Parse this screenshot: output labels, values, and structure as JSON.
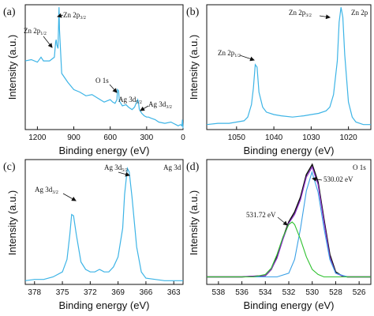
{
  "chart_data": [
    {
      "panel": "(a)",
      "type": "line",
      "xlabel": "Binding energy (eV)",
      "ylabel": "Intensity (a.u.)",
      "xlim": [
        1300,
        0
      ],
      "x_reversed": true,
      "x_ticks": [
        1200,
        900,
        600,
        300,
        0
      ],
      "y_ticks_shown": false,
      "series": [
        {
          "color": "#3db4e6",
          "x": [
            1300,
            1250,
            1200,
            1170,
            1150,
            1100,
            1060,
            1050,
            1045,
            1040,
            1030,
            1022,
            1018,
            1000,
            950,
            900,
            850,
            800,
            750,
            700,
            650,
            600,
            580,
            560,
            545,
            540,
            531,
            525,
            500,
            470,
            450,
            420,
            400,
            374,
            368,
            360,
            340,
            320,
            300,
            285,
            260,
            230,
            200,
            150,
            100,
            80,
            60,
            40,
            20,
            10,
            5,
            0
          ],
          "y": [
            0.55,
            0.56,
            0.54,
            0.58,
            0.55,
            0.55,
            0.58,
            0.7,
            0.72,
            0.68,
            0.65,
            0.98,
            0.8,
            0.45,
            0.38,
            0.32,
            0.3,
            0.27,
            0.28,
            0.25,
            0.22,
            0.24,
            0.22,
            0.21,
            0.24,
            0.32,
            0.31,
            0.23,
            0.19,
            0.2,
            0.18,
            0.16,
            0.18,
            0.24,
            0.22,
            0.16,
            0.13,
            0.11,
            0.1,
            0.1,
            0.09,
            0.08,
            0.06,
            0.05,
            0.06,
            0.05,
            0.04,
            0.03,
            0.04,
            0.03,
            0.08,
            0.01
          ]
        }
      ],
      "annotations": [
        {
          "main": "Zn 2p",
          "sub": "1/2",
          "at": 1045
        },
        {
          "main": "Zn 2p",
          "sub": "3/2",
          "at": 1022
        },
        {
          "main": "O 1s",
          "sub": "",
          "at": 531
        },
        {
          "main": "Ag 3d",
          "sub": "5/2",
          "at": 368
        },
        {
          "main": "Ag 3d",
          "sub": "3/2",
          "at": 374
        }
      ]
    },
    {
      "panel": "(b)",
      "title": "Zn 2p",
      "type": "line",
      "xlabel": "Binding energy (eV)",
      "ylabel": "Intensity (a.u.)",
      "xlim": [
        1058,
        1014
      ],
      "x_reversed": true,
      "x_ticks": [
        1050,
        1040,
        1030,
        1020
      ],
      "y_ticks_shown": false,
      "series": [
        {
          "color": "#3db4e6",
          "x": [
            1058,
            1055,
            1052,
            1050,
            1048,
            1047,
            1046,
            1045.5,
            1045,
            1044.5,
            1044,
            1043,
            1042,
            1040,
            1038,
            1035,
            1032,
            1030,
            1028,
            1026,
            1025,
            1024,
            1023,
            1022.5,
            1022,
            1021.5,
            1021,
            1020,
            1019,
            1018,
            1016,
            1014
          ],
          "y": [
            0.04,
            0.05,
            0.05,
            0.06,
            0.07,
            0.1,
            0.2,
            0.33,
            0.52,
            0.5,
            0.3,
            0.18,
            0.14,
            0.12,
            0.11,
            0.1,
            0.11,
            0.12,
            0.13,
            0.15,
            0.18,
            0.28,
            0.55,
            0.86,
            0.98,
            0.9,
            0.6,
            0.22,
            0.1,
            0.06,
            0.04,
            0.04
          ]
        }
      ],
      "annotations": [
        {
          "main": "Zn 2p",
          "sub": "1/2",
          "at": 1045
        },
        {
          "main": "Zn 2p",
          "sub": "3/2",
          "at": 1022
        }
      ]
    },
    {
      "panel": "(c)",
      "title": "Ag 3d",
      "type": "line",
      "xlabel": "Binding energy (eV)",
      "ylabel": "Intensity (a.u.)",
      "xlim": [
        379,
        362
      ],
      "x_reversed": true,
      "x_ticks": [
        378,
        375,
        372,
        369,
        366,
        363
      ],
      "y_ticks_shown": false,
      "series": [
        {
          "color": "#3db4e6",
          "x": [
            379,
            378,
            377,
            376,
            375,
            374.5,
            374.2,
            374,
            373.8,
            373.5,
            373,
            372.5,
            372,
            371.5,
            371,
            370.5,
            370,
            369.5,
            369,
            368.5,
            368.3,
            368,
            367.8,
            367.5,
            367,
            366.5,
            366,
            365,
            364,
            363,
            362
          ],
          "y": [
            0.03,
            0.04,
            0.04,
            0.06,
            0.1,
            0.2,
            0.4,
            0.56,
            0.55,
            0.4,
            0.18,
            0.12,
            0.1,
            0.1,
            0.12,
            0.1,
            0.1,
            0.14,
            0.22,
            0.45,
            0.72,
            0.93,
            0.9,
            0.7,
            0.3,
            0.1,
            0.05,
            0.04,
            0.03,
            0.03,
            0.03
          ]
        }
      ],
      "annotations": [
        {
          "main": "Ag 3d",
          "sub": "3/2",
          "at": 374
        },
        {
          "main": "Ag 3d",
          "sub": "5/2",
          "at": 368
        }
      ]
    },
    {
      "panel": "(d)",
      "title": "O 1s",
      "type": "line",
      "xlabel": "Binding energy (eV)",
      "ylabel": "Intensity (a.u.)",
      "xlim": [
        539,
        525
      ],
      "x_reversed": true,
      "x_ticks": [
        538,
        536,
        534,
        532,
        530,
        528,
        526
      ],
      "y_ticks_shown": false,
      "series": [
        {
          "color": "#111111",
          "x": [
            539,
            536,
            534,
            533.5,
            533,
            532.5,
            532,
            531.5,
            531,
            530.5,
            530,
            529.5,
            529,
            528.5,
            528,
            527.5,
            527,
            525
          ],
          "y": [
            0.06,
            0.06,
            0.07,
            0.12,
            0.22,
            0.37,
            0.5,
            0.58,
            0.7,
            0.88,
            0.96,
            0.82,
            0.52,
            0.24,
            0.1,
            0.07,
            0.06,
            0.06
          ]
        },
        {
          "color": "#8b2fc9",
          "x": [
            539,
            536,
            534,
            533.5,
            533,
            532.5,
            532,
            531.5,
            531,
            530.5,
            530,
            529.5,
            529,
            528.5,
            528,
            527.5,
            527,
            525
          ],
          "y": [
            0.06,
            0.06,
            0.07,
            0.12,
            0.21,
            0.36,
            0.49,
            0.56,
            0.68,
            0.86,
            0.94,
            0.8,
            0.5,
            0.22,
            0.09,
            0.07,
            0.06,
            0.06
          ]
        },
        {
          "color": "#3aa0e6",
          "x": [
            539,
            533,
            532,
            531.5,
            531,
            530.5,
            530.02,
            529.5,
            529,
            528.5,
            528,
            527,
            525
          ],
          "y": [
            0.06,
            0.06,
            0.09,
            0.2,
            0.45,
            0.75,
            0.9,
            0.74,
            0.45,
            0.2,
            0.09,
            0.06,
            0.06
          ]
        },
        {
          "color": "#2fc12f",
          "x": [
            539,
            535,
            534,
            533.5,
            533,
            532.5,
            532,
            531.72,
            531.5,
            531,
            530.5,
            530,
            529.5,
            529,
            525
          ],
          "y": [
            0.06,
            0.06,
            0.08,
            0.13,
            0.24,
            0.38,
            0.48,
            0.5,
            0.48,
            0.36,
            0.22,
            0.12,
            0.08,
            0.06,
            0.06
          ]
        }
      ],
      "annotations": [
        {
          "label": "531.72 eV",
          "at": 531.72
        },
        {
          "label": "530.02 eV",
          "at": 530.02
        }
      ]
    }
  ]
}
